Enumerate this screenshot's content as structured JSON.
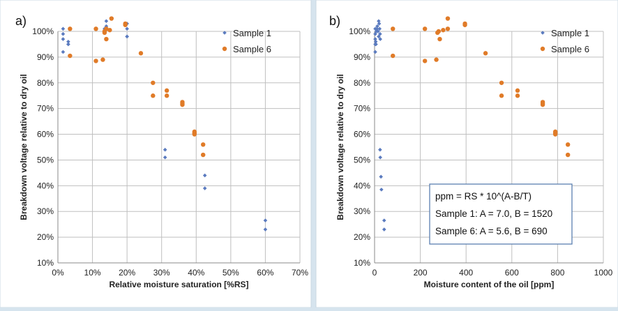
{
  "chart_data": [
    {
      "type": "scatter",
      "panel_label": "a)",
      "xlabel": "Relative moisture saturation [%RS]",
      "ylabel": "Breakdown voltage relative to dry oil",
      "xlim": [
        0,
        70
      ],
      "ylim": [
        10,
        100
      ],
      "x_ticks": [
        "0%",
        "10%",
        "20%",
        "30%",
        "40%",
        "50%",
        "60%",
        "70%"
      ],
      "y_ticks": [
        "10%",
        "20%",
        "30%",
        "40%",
        "50%",
        "60%",
        "70%",
        "80%",
        "90%",
        "100%"
      ],
      "grid": true,
      "legend_position": "top-right",
      "series": [
        {
          "name": "Sample 1",
          "color": "#5b7bbf",
          "points": [
            [
              1.5,
              101
            ],
            [
              1.5,
              99
            ],
            [
              1.5,
              97
            ],
            [
              1.5,
              92
            ],
            [
              3,
              96
            ],
            [
              3,
              95
            ],
            [
              3,
              95
            ],
            [
              13.5,
              101
            ],
            [
              13.5,
              100
            ],
            [
              13.5,
              100
            ],
            [
              14,
              104
            ],
            [
              14,
              102
            ],
            [
              20,
              103
            ],
            [
              20,
              101
            ],
            [
              20,
              98
            ],
            [
              20,
              98
            ],
            [
              31,
              54
            ],
            [
              31,
              51
            ],
            [
              42.5,
              44
            ],
            [
              42.5,
              39
            ],
            [
              60,
              26.5
            ],
            [
              60,
              23
            ]
          ]
        },
        {
          "name": "Sample 6",
          "color": "#e07b28",
          "points": [
            [
              3.5,
              101
            ],
            [
              3.5,
              90.5
            ],
            [
              11,
              101
            ],
            [
              11,
              88.5
            ],
            [
              13,
              89
            ],
            [
              13.5,
              99.5
            ],
            [
              13.5,
              100
            ],
            [
              14,
              97
            ],
            [
              14,
              101
            ],
            [
              15,
              100.5
            ],
            [
              15.5,
              105
            ],
            [
              19.5,
              103
            ],
            [
              19.5,
              102.5
            ],
            [
              24,
              91.5
            ],
            [
              27.5,
              80
            ],
            [
              27.5,
              75
            ],
            [
              31.5,
              77
            ],
            [
              31.5,
              75
            ],
            [
              36,
              72.5
            ],
            [
              36,
              72
            ],
            [
              36,
              71.5
            ],
            [
              39.5,
              61
            ],
            [
              39.5,
              60.5
            ],
            [
              39.5,
              60
            ],
            [
              42,
              56
            ],
            [
              42,
              52
            ]
          ]
        }
      ]
    },
    {
      "type": "scatter",
      "panel_label": "b)",
      "xlabel": "Moisture content of the oil [ppm]",
      "ylabel": "Breakdown voltage relative to dry oil",
      "xlim": [
        0,
        1000
      ],
      "ylim": [
        10,
        100
      ],
      "x_ticks": [
        "0",
        "200",
        "400",
        "600",
        "800",
        "1000"
      ],
      "y_ticks": [
        "10%",
        "20%",
        "30%",
        "40%",
        "50%",
        "60%",
        "70%",
        "80%",
        "90%",
        "100%"
      ],
      "grid": true,
      "legend_position": "top-right",
      "annotation": [
        "ppm = RS * 10^(A-B/T)",
        "Sample 1: A = 7.0, B = 1520",
        "Sample 6: A = 5.6, B = 690"
      ],
      "series": [
        {
          "name": "Sample 1",
          "color": "#5b7bbf",
          "points": [
            [
              3,
              101
            ],
            [
              3,
              99
            ],
            [
              3,
              97
            ],
            [
              3,
              95
            ],
            [
              3,
              92
            ],
            [
              5,
              96
            ],
            [
              6,
              95
            ],
            [
              8,
              100
            ],
            [
              10,
              101
            ],
            [
              12,
              102
            ],
            [
              15,
              100
            ],
            [
              18,
              104
            ],
            [
              18,
              98
            ],
            [
              20,
              103
            ],
            [
              22,
              101
            ],
            [
              24,
              99
            ],
            [
              25,
              97
            ],
            [
              24,
              54
            ],
            [
              25,
              51
            ],
            [
              28,
              43.5
            ],
            [
              30,
              38.5
            ],
            [
              42,
              26.5
            ],
            [
              42,
              23
            ]
          ]
        },
        {
          "name": "Sample 6",
          "color": "#e07b28",
          "points": [
            [
              80,
              101
            ],
            [
              80,
              90.5
            ],
            [
              220,
              101
            ],
            [
              220,
              88.5
            ],
            [
              270,
              89
            ],
            [
              275,
              99.5
            ],
            [
              280,
              100
            ],
            [
              285,
              97
            ],
            [
              300,
              100.5
            ],
            [
              320,
              105
            ],
            [
              320,
              101
            ],
            [
              395,
              103
            ],
            [
              395,
              102.5
            ],
            [
              485,
              91.5
            ],
            [
              555,
              80
            ],
            [
              555,
              75
            ],
            [
              625,
              77
            ],
            [
              625,
              75
            ],
            [
              735,
              72.5
            ],
            [
              735,
              72
            ],
            [
              735,
              71.5
            ],
            [
              790,
              61
            ],
            [
              790,
              60.5
            ],
            [
              790,
              60
            ],
            [
              845,
              56
            ],
            [
              845,
              52
            ]
          ]
        }
      ]
    }
  ]
}
